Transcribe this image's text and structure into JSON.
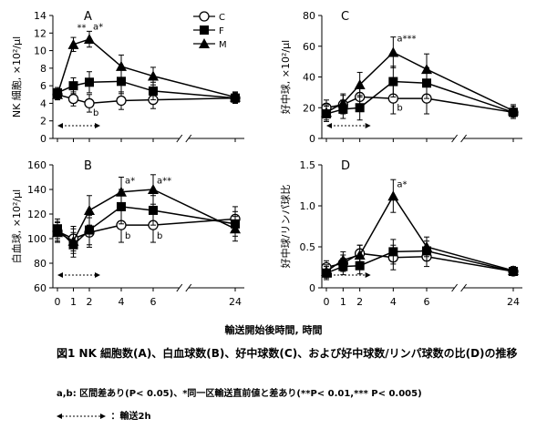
{
  "figure": {
    "x_common_label": "輸送開始後時間, 時間",
    "caption_title": "図1 NK 細胞数(A)、白血球数(B)、好中球数(C)、および好中球数/リンパ球数の比(D)の推移",
    "caption_note": "a,b: 区間差あり(P< 0.05)、*同一区輸送直前値と差あり(**P< 0.01,*** P< 0.005)",
    "caption_arrow": "：輸送2h"
  },
  "legend": {
    "entries": [
      "C",
      "F",
      "M"
    ],
    "markers": [
      "circle-open",
      "square-filled",
      "triangle-filled"
    ]
  },
  "chart_data": [
    {
      "panel": "A",
      "type": "line",
      "ylabel": "NK 細胞, ×10²/μl",
      "ylim": [
        0,
        14
      ],
      "yticks": [
        0,
        2,
        4,
        6,
        8,
        10,
        12,
        14
      ],
      "xticks": [],
      "x": [
        0,
        1,
        2,
        4,
        6,
        24
      ],
      "series": [
        {
          "name": "C",
          "values": [
            5.0,
            4.5,
            4.0,
            4.3,
            4.4,
            4.6
          ],
          "errors": [
            0.6,
            0.8,
            1.0,
            1.0,
            1.0,
            0.6
          ]
        },
        {
          "name": "F",
          "values": [
            5.2,
            6.0,
            6.4,
            6.5,
            5.4,
            4.6
          ],
          "errors": [
            0.6,
            0.9,
            1.2,
            1.4,
            1.0,
            0.6
          ]
        },
        {
          "name": "M",
          "values": [
            5.0,
            10.7,
            11.3,
            8.2,
            7.1,
            4.7
          ],
          "errors": [
            0.6,
            0.8,
            0.9,
            1.3,
            1.0,
            0.6
          ]
        }
      ],
      "annotations": [
        {
          "x": 1,
          "y": 12.3,
          "text": "**"
        },
        {
          "x": 2,
          "y": 12.4,
          "text": "a*"
        },
        {
          "x": 2,
          "y": 2.6,
          "text": "b"
        }
      ]
    },
    {
      "panel": "C",
      "type": "line",
      "ylabel": "好中球, ×10²/μl",
      "ylim": [
        0,
        80
      ],
      "yticks": [
        0,
        20,
        40,
        60,
        80
      ],
      "xticks": [],
      "x": [
        0,
        1,
        2,
        4,
        6,
        24
      ],
      "series": [
        {
          "name": "C",
          "values": [
            20,
            22,
            27,
            26,
            26,
            17
          ],
          "errors": [
            5,
            6,
            8,
            10,
            10,
            4
          ]
        },
        {
          "name": "F",
          "values": [
            16,
            19,
            20,
            37,
            36,
            17
          ],
          "errors": [
            5,
            6,
            8,
            10,
            10,
            4
          ]
        },
        {
          "name": "M",
          "values": [
            17,
            23,
            35,
            56,
            45,
            18
          ],
          "errors": [
            5,
            6,
            8,
            10,
            10,
            4
          ]
        }
      ],
      "annotations": [
        {
          "x": 4,
          "y": 63,
          "text": "a***"
        },
        {
          "x": 4,
          "y": 18,
          "text": "b"
        }
      ]
    },
    {
      "panel": "B",
      "type": "line",
      "ylabel": "白血球, ×10²/μl",
      "ylim": [
        60,
        160
      ],
      "yticks": [
        60,
        80,
        100,
        120,
        140,
        160
      ],
      "xticks": [
        0,
        1,
        2,
        4,
        6,
        24
      ],
      "x": [
        0,
        1,
        2,
        4,
        6,
        24
      ],
      "series": [
        {
          "name": "C",
          "values": [
            106,
            100,
            105,
            111,
            111,
            116
          ],
          "errors": [
            8,
            10,
            12,
            14,
            14,
            10
          ]
        },
        {
          "name": "F",
          "values": [
            108,
            95,
            107,
            126,
            123,
            112
          ],
          "errors": [
            8,
            10,
            12,
            14,
            12,
            10
          ]
        },
        {
          "name": "M",
          "values": [
            105,
            98,
            123,
            138,
            140,
            108
          ],
          "errors": [
            8,
            10,
            12,
            12,
            12,
            10
          ]
        }
      ],
      "annotations": [
        {
          "x": 4,
          "y": 145,
          "text": "a*"
        },
        {
          "x": 6,
          "y": 145,
          "text": "a**"
        },
        {
          "x": 4,
          "y": 100,
          "text": "b"
        },
        {
          "x": 6,
          "y": 100,
          "text": "b"
        }
      ]
    },
    {
      "panel": "D",
      "type": "line",
      "ylabel": "好中球/リンパ球比",
      "ylim": [
        0,
        1.5
      ],
      "yticks": [
        0,
        0.5,
        1.0,
        1.5
      ],
      "ytick_labels": [
        "0",
        "0.5",
        "1.0",
        "1.5"
      ],
      "xticks": [
        0,
        1,
        2,
        4,
        6,
        24
      ],
      "x": [
        0,
        1,
        2,
        4,
        6,
        24
      ],
      "series": [
        {
          "name": "C",
          "values": [
            0.25,
            0.3,
            0.42,
            0.37,
            0.38,
            0.2
          ],
          "errors": [
            0.08,
            0.1,
            0.1,
            0.15,
            0.12,
            0.05
          ]
        },
        {
          "name": "F",
          "values": [
            0.18,
            0.26,
            0.27,
            0.44,
            0.45,
            0.2
          ],
          "errors": [
            0.08,
            0.1,
            0.1,
            0.15,
            0.12,
            0.05
          ]
        },
        {
          "name": "M",
          "values": [
            0.2,
            0.34,
            0.4,
            1.12,
            0.5,
            0.21
          ],
          "errors": [
            0.08,
            0.1,
            0.12,
            0.2,
            0.12,
            0.05
          ]
        }
      ],
      "annotations": [
        {
          "x": 4,
          "y": 1.23,
          "text": "a*"
        }
      ]
    }
  ]
}
